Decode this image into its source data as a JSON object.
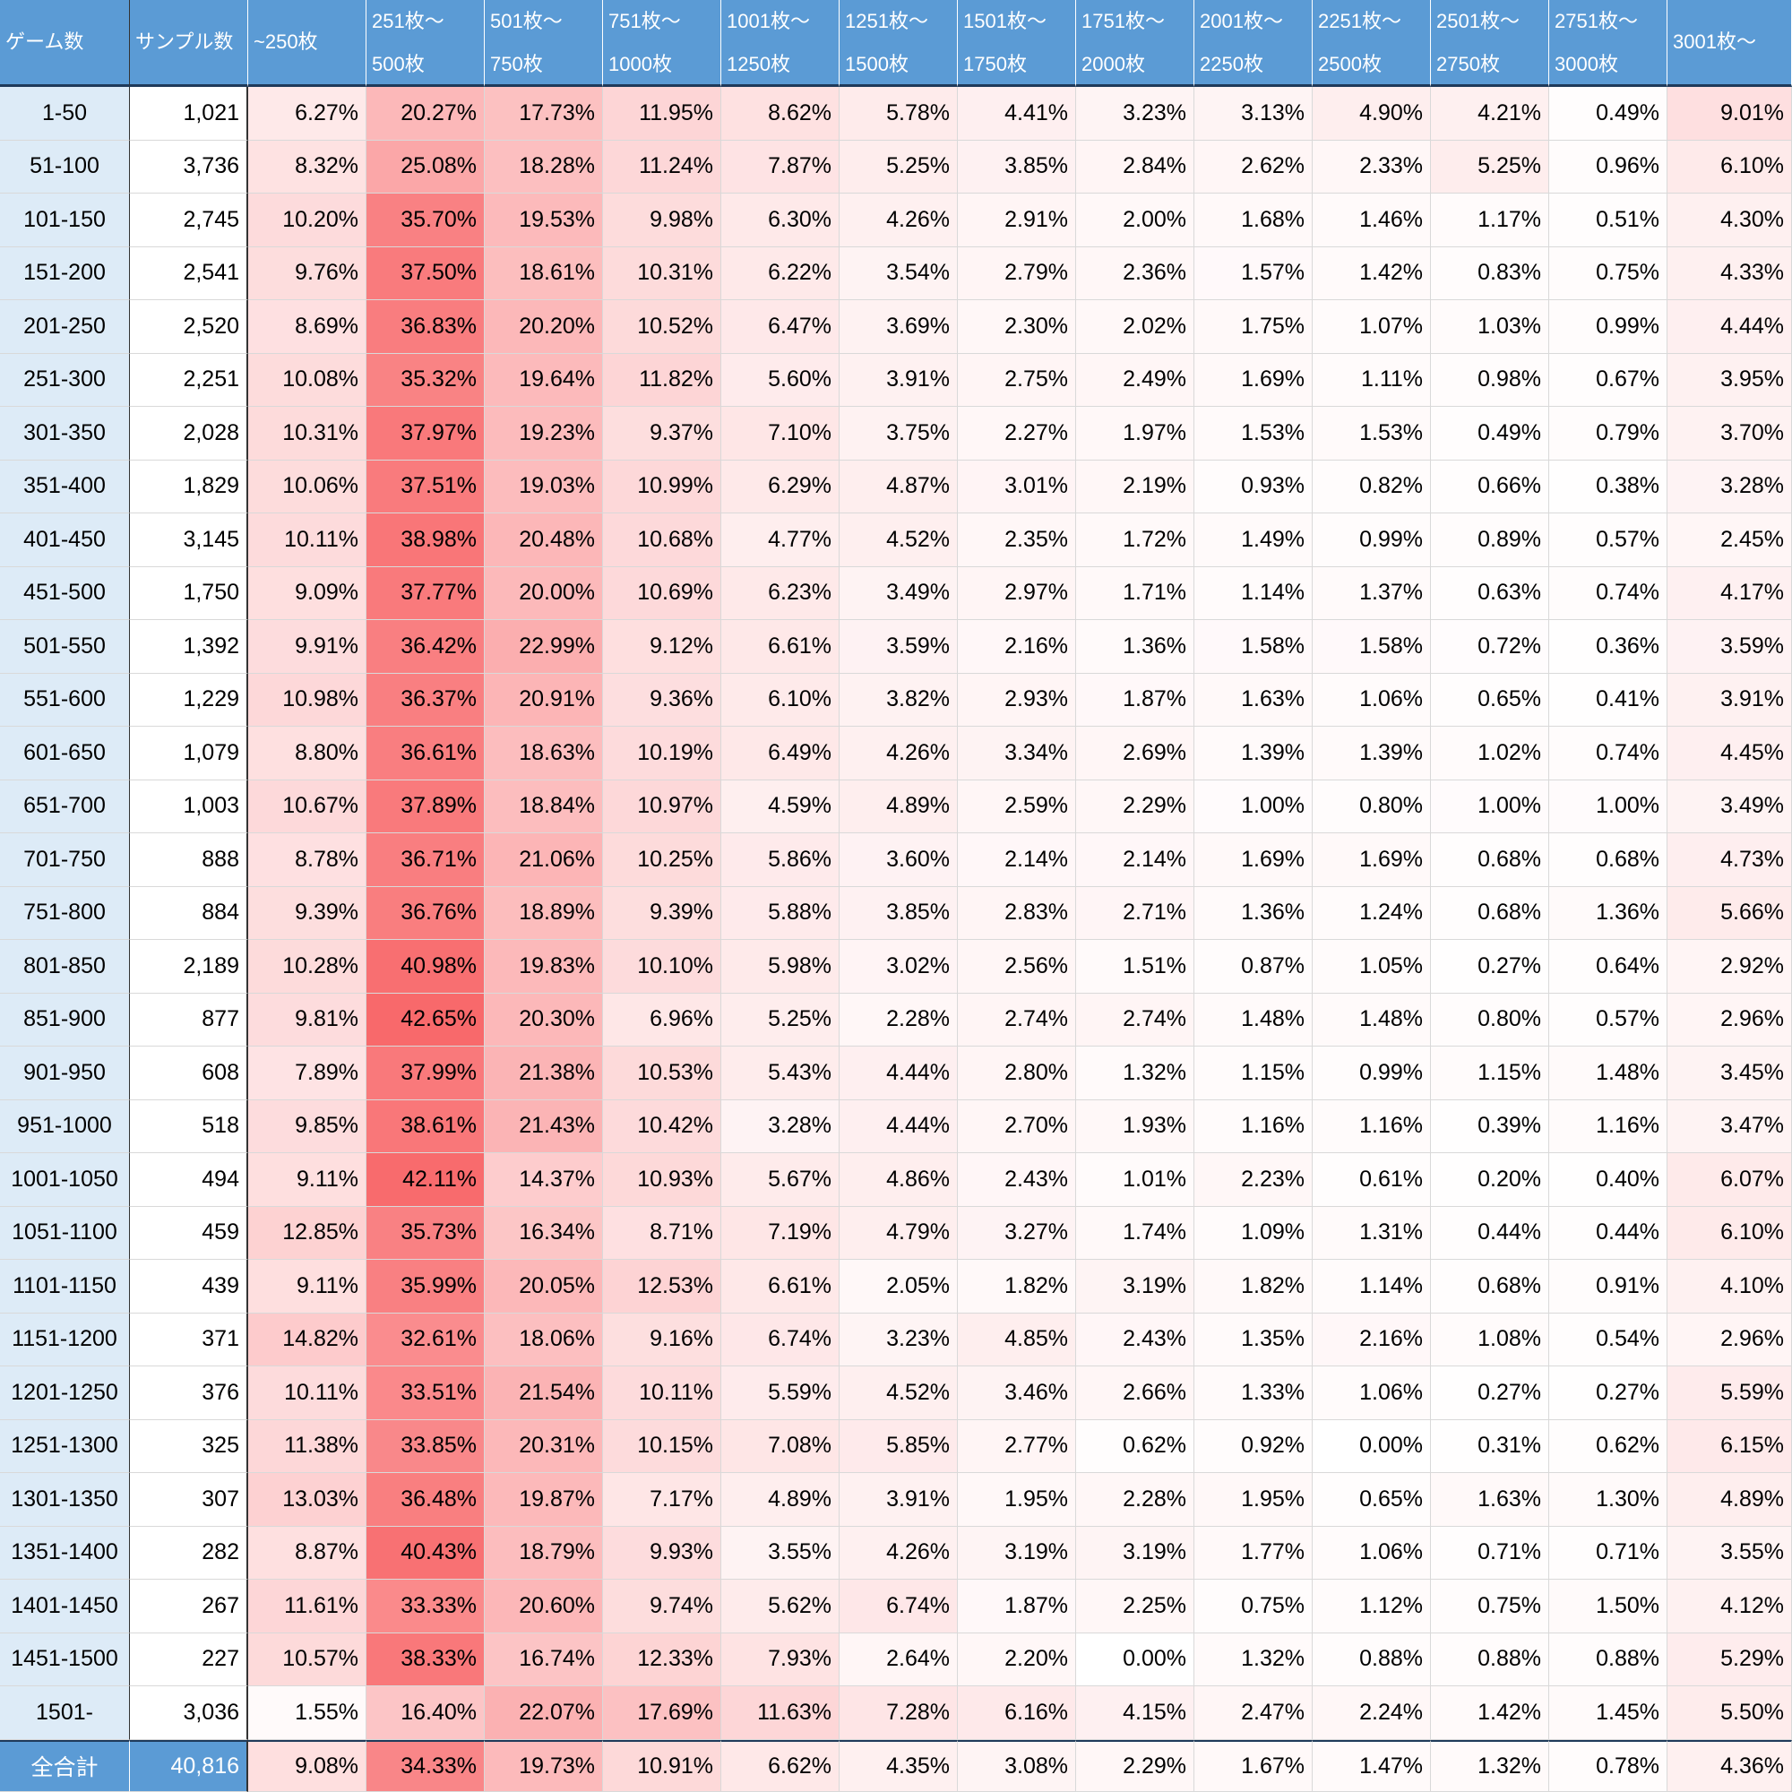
{
  "chart_data": {
    "type": "heatmap",
    "row_header": "ゲーム数",
    "sample_header": "サンプル数",
    "columns": [
      "~250枚",
      "251枚～\n500枚",
      "501枚～\n750枚",
      "751枚～\n1000枚",
      "1001枚～\n1250枚",
      "1251枚～\n1500枚",
      "1501枚～\n1750枚",
      "1751枚～\n2000枚",
      "2001枚～\n2250枚",
      "2251枚～\n2500枚",
      "2501枚～\n2750枚",
      "2751枚～\n3000枚",
      "3001枚～"
    ],
    "rows": [
      {
        "label": "1-50",
        "samples": "1,021",
        "values": [
          "6.27%",
          "20.27%",
          "17.73%",
          "11.95%",
          "8.62%",
          "5.78%",
          "4.41%",
          "3.23%",
          "3.13%",
          "4.90%",
          "4.21%",
          "0.49%",
          "9.01%"
        ]
      },
      {
        "label": "51-100",
        "samples": "3,736",
        "values": [
          "8.32%",
          "25.08%",
          "18.28%",
          "11.24%",
          "7.87%",
          "5.25%",
          "3.85%",
          "2.84%",
          "2.62%",
          "2.33%",
          "5.25%",
          "0.96%",
          "6.10%"
        ]
      },
      {
        "label": "101-150",
        "samples": "2,745",
        "values": [
          "10.20%",
          "35.70%",
          "19.53%",
          "9.98%",
          "6.30%",
          "4.26%",
          "2.91%",
          "2.00%",
          "1.68%",
          "1.46%",
          "1.17%",
          "0.51%",
          "4.30%"
        ]
      },
      {
        "label": "151-200",
        "samples": "2,541",
        "values": [
          "9.76%",
          "37.50%",
          "18.61%",
          "10.31%",
          "6.22%",
          "3.54%",
          "2.79%",
          "2.36%",
          "1.57%",
          "1.42%",
          "0.83%",
          "0.75%",
          "4.33%"
        ]
      },
      {
        "label": "201-250",
        "samples": "2,520",
        "values": [
          "8.69%",
          "36.83%",
          "20.20%",
          "10.52%",
          "6.47%",
          "3.69%",
          "2.30%",
          "2.02%",
          "1.75%",
          "1.07%",
          "1.03%",
          "0.99%",
          "4.44%"
        ]
      },
      {
        "label": "251-300",
        "samples": "2,251",
        "values": [
          "10.08%",
          "35.32%",
          "19.64%",
          "11.82%",
          "5.60%",
          "3.91%",
          "2.75%",
          "2.49%",
          "1.69%",
          "1.11%",
          "0.98%",
          "0.67%",
          "3.95%"
        ]
      },
      {
        "label": "301-350",
        "samples": "2,028",
        "values": [
          "10.31%",
          "37.97%",
          "19.23%",
          "9.37%",
          "7.10%",
          "3.75%",
          "2.27%",
          "1.97%",
          "1.53%",
          "1.53%",
          "0.49%",
          "0.79%",
          "3.70%"
        ]
      },
      {
        "label": "351-400",
        "samples": "1,829",
        "values": [
          "10.06%",
          "37.51%",
          "19.03%",
          "10.99%",
          "6.29%",
          "4.87%",
          "3.01%",
          "2.19%",
          "0.93%",
          "0.82%",
          "0.66%",
          "0.38%",
          "3.28%"
        ]
      },
      {
        "label": "401-450",
        "samples": "3,145",
        "values": [
          "10.11%",
          "38.98%",
          "20.48%",
          "10.68%",
          "4.77%",
          "4.52%",
          "2.35%",
          "1.72%",
          "1.49%",
          "0.99%",
          "0.89%",
          "0.57%",
          "2.45%"
        ]
      },
      {
        "label": "451-500",
        "samples": "1,750",
        "values": [
          "9.09%",
          "37.77%",
          "20.00%",
          "10.69%",
          "6.23%",
          "3.49%",
          "2.97%",
          "1.71%",
          "1.14%",
          "1.37%",
          "0.63%",
          "0.74%",
          "4.17%"
        ]
      },
      {
        "label": "501-550",
        "samples": "1,392",
        "values": [
          "9.91%",
          "36.42%",
          "22.99%",
          "9.12%",
          "6.61%",
          "3.59%",
          "2.16%",
          "1.36%",
          "1.58%",
          "1.58%",
          "0.72%",
          "0.36%",
          "3.59%"
        ]
      },
      {
        "label": "551-600",
        "samples": "1,229",
        "values": [
          "10.98%",
          "36.37%",
          "20.91%",
          "9.36%",
          "6.10%",
          "3.82%",
          "2.93%",
          "1.87%",
          "1.63%",
          "1.06%",
          "0.65%",
          "0.41%",
          "3.91%"
        ]
      },
      {
        "label": "601-650",
        "samples": "1,079",
        "values": [
          "8.80%",
          "36.61%",
          "18.63%",
          "10.19%",
          "6.49%",
          "4.26%",
          "3.34%",
          "2.69%",
          "1.39%",
          "1.39%",
          "1.02%",
          "0.74%",
          "4.45%"
        ]
      },
      {
        "label": "651-700",
        "samples": "1,003",
        "values": [
          "10.67%",
          "37.89%",
          "18.84%",
          "10.97%",
          "4.59%",
          "4.89%",
          "2.59%",
          "2.29%",
          "1.00%",
          "0.80%",
          "1.00%",
          "1.00%",
          "3.49%"
        ]
      },
      {
        "label": "701-750",
        "samples": "888",
        "values": [
          "8.78%",
          "36.71%",
          "21.06%",
          "10.25%",
          "5.86%",
          "3.60%",
          "2.14%",
          "2.14%",
          "1.69%",
          "1.69%",
          "0.68%",
          "0.68%",
          "4.73%"
        ]
      },
      {
        "label": "751-800",
        "samples": "884",
        "values": [
          "9.39%",
          "36.76%",
          "18.89%",
          "9.39%",
          "5.88%",
          "3.85%",
          "2.83%",
          "2.71%",
          "1.36%",
          "1.24%",
          "0.68%",
          "1.36%",
          "5.66%"
        ]
      },
      {
        "label": "801-850",
        "samples": "2,189",
        "values": [
          "10.28%",
          "40.98%",
          "19.83%",
          "10.10%",
          "5.98%",
          "3.02%",
          "2.56%",
          "1.51%",
          "0.87%",
          "1.05%",
          "0.27%",
          "0.64%",
          "2.92%"
        ]
      },
      {
        "label": "851-900",
        "samples": "877",
        "values": [
          "9.81%",
          "42.65%",
          "20.30%",
          "6.96%",
          "5.25%",
          "2.28%",
          "2.74%",
          "2.74%",
          "1.48%",
          "1.48%",
          "0.80%",
          "0.57%",
          "2.96%"
        ]
      },
      {
        "label": "901-950",
        "samples": "608",
        "values": [
          "7.89%",
          "37.99%",
          "21.38%",
          "10.53%",
          "5.43%",
          "4.44%",
          "2.80%",
          "1.32%",
          "1.15%",
          "0.99%",
          "1.15%",
          "1.48%",
          "3.45%"
        ]
      },
      {
        "label": "951-1000",
        "samples": "518",
        "values": [
          "9.85%",
          "38.61%",
          "21.43%",
          "10.42%",
          "3.28%",
          "4.44%",
          "2.70%",
          "1.93%",
          "1.16%",
          "1.16%",
          "0.39%",
          "1.16%",
          "3.47%"
        ]
      },
      {
        "label": "1001-1050",
        "samples": "494",
        "values": [
          "9.11%",
          "42.11%",
          "14.37%",
          "10.93%",
          "5.67%",
          "4.86%",
          "2.43%",
          "1.01%",
          "2.23%",
          "0.61%",
          "0.20%",
          "0.40%",
          "6.07%"
        ]
      },
      {
        "label": "1051-1100",
        "samples": "459",
        "values": [
          "12.85%",
          "35.73%",
          "16.34%",
          "8.71%",
          "7.19%",
          "4.79%",
          "3.27%",
          "1.74%",
          "1.09%",
          "1.31%",
          "0.44%",
          "0.44%",
          "6.10%"
        ]
      },
      {
        "label": "1101-1150",
        "samples": "439",
        "values": [
          "9.11%",
          "35.99%",
          "20.05%",
          "12.53%",
          "6.61%",
          "2.05%",
          "1.82%",
          "3.19%",
          "1.82%",
          "1.14%",
          "0.68%",
          "0.91%",
          "4.10%"
        ]
      },
      {
        "label": "1151-1200",
        "samples": "371",
        "values": [
          "14.82%",
          "32.61%",
          "18.06%",
          "9.16%",
          "6.74%",
          "3.23%",
          "4.85%",
          "2.43%",
          "1.35%",
          "2.16%",
          "1.08%",
          "0.54%",
          "2.96%"
        ]
      },
      {
        "label": "1201-1250",
        "samples": "376",
        "values": [
          "10.11%",
          "33.51%",
          "21.54%",
          "10.11%",
          "5.59%",
          "4.52%",
          "3.46%",
          "2.66%",
          "1.33%",
          "1.06%",
          "0.27%",
          "0.27%",
          "5.59%"
        ]
      },
      {
        "label": "1251-1300",
        "samples": "325",
        "values": [
          "11.38%",
          "33.85%",
          "20.31%",
          "10.15%",
          "7.08%",
          "5.85%",
          "2.77%",
          "0.62%",
          "0.92%",
          "0.00%",
          "0.31%",
          "0.62%",
          "6.15%"
        ]
      },
      {
        "label": "1301-1350",
        "samples": "307",
        "values": [
          "13.03%",
          "36.48%",
          "19.87%",
          "7.17%",
          "4.89%",
          "3.91%",
          "1.95%",
          "2.28%",
          "1.95%",
          "0.65%",
          "1.63%",
          "1.30%",
          "4.89%"
        ]
      },
      {
        "label": "1351-1400",
        "samples": "282",
        "values": [
          "8.87%",
          "40.43%",
          "18.79%",
          "9.93%",
          "3.55%",
          "4.26%",
          "3.19%",
          "3.19%",
          "1.77%",
          "1.06%",
          "0.71%",
          "0.71%",
          "3.55%"
        ]
      },
      {
        "label": "1401-1450",
        "samples": "267",
        "values": [
          "11.61%",
          "33.33%",
          "20.60%",
          "9.74%",
          "5.62%",
          "6.74%",
          "1.87%",
          "2.25%",
          "0.75%",
          "1.12%",
          "0.75%",
          "1.50%",
          "4.12%"
        ]
      },
      {
        "label": "1451-1500",
        "samples": "227",
        "values": [
          "10.57%",
          "38.33%",
          "16.74%",
          "12.33%",
          "7.93%",
          "2.64%",
          "2.20%",
          "0.00%",
          "1.32%",
          "0.88%",
          "0.88%",
          "0.88%",
          "5.29%"
        ]
      },
      {
        "label": "1501-",
        "samples": "3,036",
        "values": [
          "1.55%",
          "16.40%",
          "22.07%",
          "17.69%",
          "11.63%",
          "7.28%",
          "6.16%",
          "4.15%",
          "2.47%",
          "2.24%",
          "1.42%",
          "1.45%",
          "5.50%"
        ]
      }
    ],
    "total": {
      "label": "全合計",
      "samples": "40,816",
      "values": [
        "9.08%",
        "34.33%",
        "19.73%",
        "10.91%",
        "6.62%",
        "4.35%",
        "3.08%",
        "2.29%",
        "1.67%",
        "1.47%",
        "1.32%",
        "0.78%",
        "4.36%"
      ]
    },
    "color_scale": {
      "low": "#ffffff",
      "high": "#f8696b",
      "min": 0,
      "max": 42.65
    },
    "header_color": "#5b9bd5",
    "row_label_color": "#ddebf7"
  }
}
